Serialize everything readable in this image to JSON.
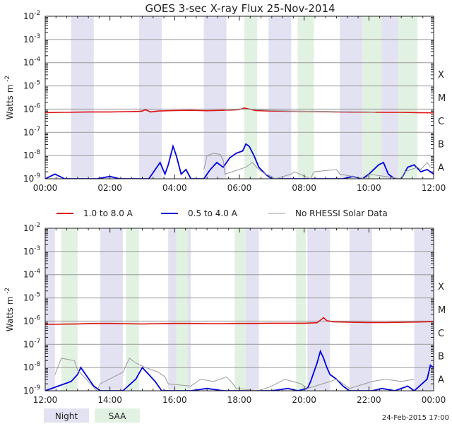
{
  "title": "GOES 3-sec X-ray Flux   25-Nov-2014",
  "footer_timestamp": "24-Feb-2015 17:00",
  "colors": {
    "long_band": "#dd1111",
    "short_band": "#0000dd",
    "rhessi": "#999999",
    "night": "#e2e2f2",
    "saa": "#e2f2e2",
    "gridline": "#999999"
  },
  "legend": [
    {
      "label": "1.0 to 8.0 A",
      "color": "#dd1111",
      "width": 2
    },
    {
      "label": "0.5 to 4.0 A",
      "color": "#0000dd",
      "width": 2
    },
    {
      "label": "No RHESSI Solar Data",
      "color": "#999999",
      "width": 1
    }
  ],
  "bands_legend": [
    {
      "label": "Night",
      "color": "#e2e2f2"
    },
    {
      "label": "SAA",
      "color": "#e2f2e2"
    }
  ],
  "chart_data": [
    {
      "type": "line",
      "title": "GOES 3-sec X-ray Flux   25-Nov-2014",
      "xlabel": "",
      "ylabel": "Watts m^-2",
      "ylabel_text": "Watts m",
      "ylabel_sup": "-2",
      "yscale": "log",
      "ylim_exp": [
        -9,
        -2
      ],
      "xlim_hours": [
        0,
        12
      ],
      "x_ticks": [
        "00:00",
        "02:00",
        "04:00",
        "06:00",
        "08:00",
        "10:00",
        "12:00"
      ],
      "y_ticks": [
        {
          "exp": -9,
          "base": "10",
          "sup": "-9"
        },
        {
          "exp": -8,
          "base": "10",
          "sup": "-8"
        },
        {
          "exp": -7,
          "base": "10",
          "sup": "-7"
        },
        {
          "exp": -6,
          "base": "10",
          "sup": "-6"
        },
        {
          "exp": -5,
          "base": "10",
          "sup": "-5"
        },
        {
          "exp": -4,
          "base": "10",
          "sup": "-4"
        },
        {
          "exp": -3,
          "base": "10",
          "sup": "-3"
        },
        {
          "exp": -2,
          "base": "10",
          "sup": "-2"
        }
      ],
      "class_labels": [
        {
          "label": "A",
          "exp": -8.5
        },
        {
          "label": "B",
          "exp": -7.5
        },
        {
          "label": "C",
          "exp": -6.5
        },
        {
          "label": "M",
          "exp": -5.5
        },
        {
          "label": "X",
          "exp": -4.5
        }
      ],
      "night": [
        [
          0.8,
          1.5
        ],
        [
          2.9,
          3.6
        ],
        [
          4.9,
          5.6
        ],
        [
          6.9,
          7.6
        ],
        [
          9.1,
          9.8
        ],
        [
          10.2,
          10.9
        ]
      ],
      "saa": [
        [
          6.15,
          6.55
        ],
        [
          7.8,
          8.3
        ],
        [
          9.8,
          10.4
        ],
        [
          10.9,
          11.5
        ]
      ],
      "series": [
        {
          "name": "1.0 to 8.0 A",
          "x": [
            0,
            0.5,
            1,
            1.5,
            2,
            2.5,
            2.9,
            3,
            3.1,
            3.25,
            3.5,
            4,
            4.5,
            5,
            5.5,
            5.8,
            6,
            6.15,
            6.3,
            6.5,
            7,
            7.5,
            8,
            8.5,
            9,
            9.5,
            10,
            10.5,
            11,
            11.5,
            12
          ],
          "y_log": [
            -6.15,
            -6.14,
            -6.13,
            -6.12,
            -6.12,
            -6.11,
            -6.1,
            -6.08,
            -6.03,
            -6.12,
            -6.08,
            -6.06,
            -6.05,
            -6.07,
            -6.05,
            -6.04,
            -6.02,
            -5.95,
            -6.0,
            -6.06,
            -6.08,
            -6.09,
            -6.1,
            -6.11,
            -6.12,
            -6.13,
            -6.13,
            -6.14,
            -6.14,
            -6.15,
            -6.16
          ]
        },
        {
          "name": "0.5 to 4.0 A",
          "x": [
            0,
            0.3,
            0.6,
            0.8,
            1.6,
            2.0,
            2.3,
            2.8,
            3.2,
            3.4,
            3.55,
            3.7,
            3.8,
            3.95,
            4.05,
            4.2,
            4.35,
            4.5,
            4.9,
            5.1,
            5.3,
            5.5,
            5.7,
            5.9,
            6.1,
            6.2,
            6.3,
            6.45,
            6.6,
            6.8,
            7.0,
            7.3,
            7.5,
            7.6,
            9.2,
            9.5,
            9.8,
            10.0,
            10.3,
            10.45,
            10.6,
            10.8,
            11.0,
            11.2,
            11.4,
            11.6,
            11.8,
            12
          ],
          "y_log": [
            -9.0,
            -8.8,
            -9.0,
            -9.0,
            -9.0,
            -8.9,
            -9.0,
            -9.0,
            -9.0,
            -8.6,
            -8.3,
            -8.8,
            -8.4,
            -7.6,
            -8.0,
            -8.8,
            -8.6,
            -9.0,
            -9.0,
            -8.6,
            -8.3,
            -8.5,
            -8.1,
            -7.9,
            -7.8,
            -7.5,
            -7.6,
            -8.0,
            -8.5,
            -8.8,
            -9.0,
            -9.0,
            -9.0,
            -9.0,
            -9.0,
            -8.9,
            -9.0,
            -8.8,
            -8.4,
            -8.3,
            -8.8,
            -9.0,
            -9.0,
            -8.5,
            -8.4,
            -8.7,
            -8.6,
            -8.8
          ]
        },
        {
          "name": "No RHESSI Solar Data",
          "x": [
            4.9,
            5.0,
            5.2,
            5.4,
            5.5,
            5.55,
            6.2,
            6.4,
            6.6,
            6.8,
            7.0,
            7.1,
            7.6,
            7.7,
            8.2,
            8.3,
            9.0,
            9.1,
            9.9,
            10.0,
            11.0,
            11.1,
            11.5,
            11.6,
            11.8,
            11.9
          ],
          "y_log": [
            -8.6,
            -8.0,
            -7.9,
            -7.95,
            -8.2,
            -8.8,
            -8.5,
            -8.3,
            -8.6,
            -8.8,
            -8.9,
            -9.0,
            -8.8,
            -8.7,
            -9.0,
            -8.7,
            -8.6,
            -8.8,
            -9.0,
            -8.8,
            -9.0,
            -8.7,
            -8.5,
            -8.6,
            -8.3,
            -8.5
          ]
        },
        {
          "name": "1.0 to 8.0 A (RHESSI gaps)",
          "x": [
            5.55,
            6.0,
            6.4,
            6.9,
            7.6,
            8.0,
            8.3,
            9.0,
            9.9,
            10.2
          ],
          "y_log": [
            -6.04,
            -6.0,
            -6.01,
            -6.05,
            -6.08,
            -6.1,
            -6.09,
            -6.11,
            -6.12,
            -6.13
          ]
        }
      ]
    },
    {
      "type": "line",
      "title": "",
      "xlabel": "",
      "ylabel": "Watts m^-2",
      "ylabel_text": "Watts m",
      "ylabel_sup": "-2",
      "yscale": "log",
      "ylim_exp": [
        -9,
        -2
      ],
      "xlim_hours": [
        12,
        24
      ],
      "x_ticks": [
        "12:00",
        "14:00",
        "16:00",
        "18:00",
        "20:00",
        "22:00",
        "00:00"
      ],
      "y_ticks": [
        {
          "exp": -9,
          "base": "10",
          "sup": "-9"
        },
        {
          "exp": -8,
          "base": "10",
          "sup": "-8"
        },
        {
          "exp": -7,
          "base": "10",
          "sup": "-7"
        },
        {
          "exp": -6,
          "base": "10",
          "sup": "-6"
        },
        {
          "exp": -5,
          "base": "10",
          "sup": "-5"
        },
        {
          "exp": -4,
          "base": "10",
          "sup": "-4"
        },
        {
          "exp": -3,
          "base": "10",
          "sup": "-3"
        },
        {
          "exp": -2,
          "base": "10",
          "sup": "-2"
        }
      ],
      "class_labels": [
        {
          "label": "A",
          "exp": -8.5
        },
        {
          "label": "B",
          "exp": -7.5
        },
        {
          "label": "C",
          "exp": -6.5
        },
        {
          "label": "M",
          "exp": -5.5
        },
        {
          "label": "X",
          "exp": -4.5
        }
      ],
      "night": [
        [
          12.0,
          12.3
        ],
        [
          13.7,
          14.4
        ],
        [
          15.8,
          16.5
        ],
        [
          17.9,
          18.6
        ],
        [
          20.1,
          20.8
        ],
        [
          21.4,
          22.1
        ],
        [
          23.4,
          24.0
        ]
      ],
      "saa": [
        [
          12.5,
          13.0
        ],
        [
          14.5,
          14.9
        ],
        [
          16.05,
          16.4
        ],
        [
          17.85,
          18.2
        ],
        [
          19.75,
          20.05
        ]
      ],
      "series": [
        {
          "name": "1.0 to 8.0 A",
          "x": [
            12,
            12.5,
            13,
            13.5,
            14,
            14.5,
            15,
            15.5,
            16,
            16.5,
            17,
            17.5,
            18,
            18.5,
            19,
            19.5,
            20,
            20.4,
            20.6,
            20.7,
            20.9,
            21.2,
            21.5,
            22,
            22.5,
            23,
            23.5,
            24
          ],
          "y_log": [
            -6.14,
            -6.13,
            -6.12,
            -6.1,
            -6.1,
            -6.11,
            -6.12,
            -6.11,
            -6.1,
            -6.1,
            -6.11,
            -6.11,
            -6.1,
            -6.1,
            -6.09,
            -6.09,
            -6.09,
            -6.07,
            -5.85,
            -5.98,
            -6.03,
            -6.04,
            -6.05,
            -6.06,
            -6.06,
            -6.05,
            -6.04,
            -6.02
          ]
        },
        {
          "name": "0.5 to 4.0 A",
          "x": [
            12,
            12.4,
            12.8,
            13.0,
            13.1,
            13.3,
            13.5,
            13.7,
            14.4,
            14.8,
            15.0,
            15.2,
            15.4,
            15.6,
            16.5,
            17.0,
            17.5,
            17.9,
            18.6,
            19.0,
            19.5,
            19.8,
            20.1,
            20.2,
            20.3,
            20.4,
            20.5,
            20.6,
            20.7,
            20.8,
            21.0,
            21.2,
            21.4,
            22.1,
            22.4,
            22.8,
            23.2,
            23.4,
            23.8,
            23.9,
            24
          ],
          "y_log": [
            -9.0,
            -8.8,
            -8.6,
            -8.3,
            -8.0,
            -8.4,
            -8.8,
            -9.0,
            -9.0,
            -8.5,
            -8.0,
            -8.3,
            -8.6,
            -9.0,
            -9.0,
            -8.9,
            -9.0,
            -9.0,
            -9.0,
            -9.0,
            -8.9,
            -9.0,
            -8.9,
            -8.6,
            -8.2,
            -7.8,
            -7.3,
            -7.6,
            -8.0,
            -8.3,
            -8.5,
            -8.8,
            -9.0,
            -9.0,
            -8.9,
            -9.0,
            -8.8,
            -9.0,
            -8.5,
            -7.9,
            -8.0
          ]
        },
        {
          "name": "No RHESSI Solar Data",
          "x": [
            12.3,
            12.5,
            12.9,
            13.0,
            13.6,
            13.7,
            14.4,
            14.6,
            14.8,
            15.1,
            15.3,
            15.5,
            15.7,
            15.8,
            16.5,
            16.8,
            17.2,
            17.6,
            17.8,
            17.9,
            18.6,
            19.0,
            19.4,
            19.9,
            20.1,
            20.8,
            21.0,
            21.2,
            21.4,
            22.1,
            22.5,
            23.0,
            23.4
          ],
          "y_log": [
            -8.3,
            -7.6,
            -7.7,
            -8.1,
            -9.0,
            -8.7,
            -8.2,
            -7.6,
            -7.8,
            -8.0,
            -8.1,
            -8.2,
            -8.4,
            -8.7,
            -8.8,
            -8.5,
            -8.6,
            -8.4,
            -8.7,
            -8.9,
            -9.0,
            -8.8,
            -8.5,
            -8.7,
            -8.9,
            -8.6,
            -8.5,
            -8.7,
            -8.9,
            -8.6,
            -8.5,
            -8.6,
            -8.5
          ]
        }
      ]
    }
  ]
}
